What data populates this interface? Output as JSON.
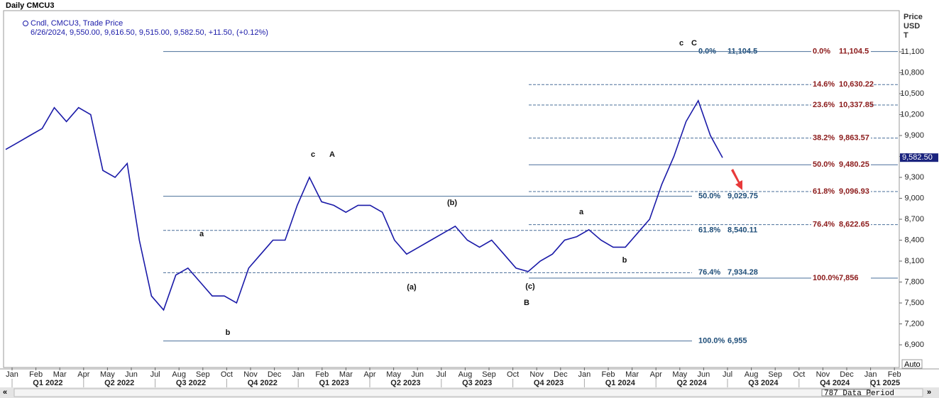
{
  "chart_data": {
    "type": "line",
    "title": "Daily CMCU3",
    "legend_name": "Cndl, CMCU3, Trade Price",
    "legend_detail": "6/26/2024, 9,550.00, 9,616.50, 9,515.00, 9,582.50, +11.50, (+0.12%)",
    "y_axis_label": [
      "Price",
      "USD",
      "T"
    ],
    "color": "#1a1aa8",
    "values": [
      9700,
      9800,
      9900,
      10000,
      10300,
      10100,
      10300,
      10200,
      9400,
      9300,
      9500,
      8400,
      7600,
      7400,
      7900,
      8000,
      7800,
      7600,
      7600,
      7500,
      8000,
      8200,
      8400,
      8400,
      8900,
      9300,
      8950,
      8900,
      8800,
      8900,
      8900,
      8800,
      8400,
      8200,
      8300,
      8400,
      8500,
      8600,
      8400,
      8300,
      8400,
      8200,
      8000,
      7950,
      8100,
      8200,
      8400,
      8450,
      8550,
      8400,
      8300,
      8300,
      8500,
      8700,
      9200,
      9600,
      10100,
      10400,
      9900,
      9583
    ],
    "last_price_label": "9,582.50",
    "ylim": [
      6575,
      11690
    ],
    "yticks": [
      {
        "value": 6900,
        "label": "6,900"
      },
      {
        "value": 7200,
        "label": "7,200"
      },
      {
        "value": 7500,
        "label": "7,500"
      },
      {
        "value": 7800,
        "label": "7,800"
      },
      {
        "value": 8100,
        "label": "8,100"
      },
      {
        "value": 8400,
        "label": "8,400"
      },
      {
        "value": 8700,
        "label": "8,700"
      },
      {
        "value": 9000,
        "label": "9,000"
      },
      {
        "value": 9300,
        "label": "9,300"
      },
      {
        "value": 9600,
        "label": "9,600"
      },
      {
        "value": 9900,
        "label": "9,900"
      },
      {
        "value": 10200,
        "label": "10,200"
      },
      {
        "value": 10500,
        "label": "10,500"
      },
      {
        "value": 10800,
        "label": "10,800"
      },
      {
        "value": 11100,
        "label": "11,100"
      }
    ],
    "month_labels": [
      "Jan",
      "Feb",
      "Mar",
      "Apr",
      "May",
      "Jun",
      "Jul",
      "Aug",
      "Sep",
      "Oct",
      "Nov",
      "Dec",
      "Jan",
      "Feb",
      "Mar",
      "Apr",
      "May",
      "Jun",
      "Jul",
      "Aug",
      "Sep",
      "Oct",
      "Nov",
      "Dec",
      "Jan",
      "Feb",
      "Mar",
      "Apr",
      "May",
      "Jun",
      "Jul",
      "Aug",
      "Sep",
      "Oct",
      "Nov",
      "Dec",
      "Jan",
      "Feb"
    ],
    "quarter_labels": [
      "Q1 2022",
      "Q2 2022",
      "Q3 2022",
      "Q4 2022",
      "Q1 2023",
      "Q2 2023",
      "Q3 2023",
      "Q4 2023",
      "Q1 2024",
      "Q2 2024",
      "Q3 2024",
      "Q4 2024",
      "Q1 2025"
    ],
    "fib_left": [
      {
        "label": "0.0%",
        "value": 11104.5,
        "value_label": "11,104.5"
      },
      {
        "label": "50.0%",
        "value": 9029.75,
        "value_label": "9,029.75"
      },
      {
        "label": "61.8%",
        "value": 8540.11,
        "value_label": "8,540.11"
      },
      {
        "label": "76.4%",
        "value": 7934.28,
        "value_label": "7,934.28"
      },
      {
        "label": "100.0%",
        "value": 6955,
        "value_label": "6,955"
      }
    ],
    "fib_right": [
      {
        "label": "0.0%",
        "value": 11104.5,
        "value_label": "11,104.5"
      },
      {
        "label": "14.6%",
        "value": 10630.22,
        "value_label": "10,630.22"
      },
      {
        "label": "23.6%",
        "value": 10337.85,
        "value_label": "10,337.85"
      },
      {
        "label": "38.2%",
        "value": 9863.57,
        "value_label": "9,863.57"
      },
      {
        "label": "50.0%",
        "value": 9480.25,
        "value_label": "9,480.25"
      },
      {
        "label": "61.8%",
        "value": 9096.93,
        "value_label": "9,096.93"
      },
      {
        "label": "76.4%",
        "value": 8622.65,
        "value_label": "8,622.65"
      },
      {
        "label": "100.0%",
        "value": 7856,
        "value_label": "7,856"
      }
    ],
    "annotations": [
      "a",
      "b",
      "c",
      "A",
      "(a)",
      "(b)",
      "(c)",
      "B",
      "a",
      "b",
      "c",
      "C"
    ],
    "data_period": "787 Data Period",
    "auto_label": "Auto"
  }
}
